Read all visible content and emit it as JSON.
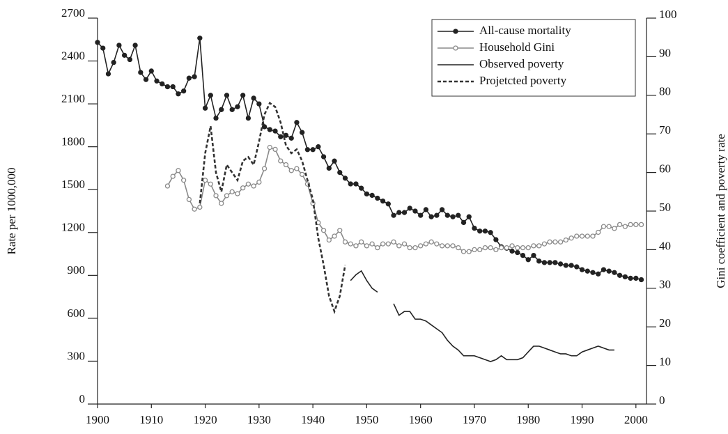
{
  "chart_data": {
    "type": "line",
    "ylabel": "Rate per 1000,000",
    "y2label": "Gini coefficient and poverty rate",
    "xlim": [
      1900,
      2003
    ],
    "xticks": [
      1900,
      1910,
      1920,
      1930,
      1940,
      1950,
      1960,
      1970,
      1980,
      1990,
      2000
    ],
    "ylim": [
      0,
      2700
    ],
    "yticks": [
      0,
      300,
      600,
      900,
      1200,
      1500,
      1800,
      2100,
      2400,
      2700
    ],
    "y2lim": [
      0,
      100
    ],
    "y2ticks": [
      0,
      10,
      20,
      30,
      40,
      50,
      60,
      70,
      80,
      90,
      100
    ],
    "legend": "upper right",
    "series": [
      {
        "name": "All-cause mortality",
        "color": "#222222",
        "marker": "filled",
        "dash": false,
        "x": [
          1900,
          1901,
          1902,
          1903,
          1904,
          1905,
          1906,
          1907,
          1908,
          1909,
          1910,
          1911,
          1912,
          1913,
          1914,
          1915,
          1916,
          1917,
          1918,
          1919,
          1920,
          1921,
          1922,
          1923,
          1924,
          1925,
          1926,
          1927,
          1928,
          1929,
          1930,
          1931,
          1932,
          1933,
          1934,
          1935,
          1936,
          1937,
          1938,
          1939,
          1940,
          1941,
          1942,
          1943,
          1944,
          1945,
          1946,
          1947,
          1948,
          1949,
          1950,
          1951,
          1952,
          1953,
          1954,
          1955,
          1956,
          1957,
          1958,
          1959,
          1960,
          1961,
          1962,
          1963,
          1964,
          1965,
          1966,
          1967,
          1968,
          1969,
          1970,
          1971,
          1972,
          1973,
          1974,
          1975,
          1976,
          1977,
          1978,
          1979,
          1980,
          1981,
          1982,
          1983,
          1984,
          1985,
          1986,
          1987,
          1988,
          1989,
          1990,
          1991,
          1992,
          1993,
          1994,
          1995,
          1996,
          1997,
          1998,
          1999,
          2000,
          2001
        ],
        "values": [
          2530,
          2490,
          2310,
          2390,
          2510,
          2440,
          2410,
          2510,
          2320,
          2270,
          2330,
          2260,
          2240,
          2220,
          2220,
          2170,
          2190,
          2280,
          2290,
          2560,
          2070,
          2160,
          2000,
          2060,
          2160,
          2060,
          2080,
          2160,
          2000,
          2140,
          2100,
          1940,
          1920,
          1910,
          1870,
          1880,
          1860,
          1970,
          1900,
          1780,
          1780,
          1800,
          1730,
          1650,
          1700,
          1620,
          1580,
          1540,
          1540,
          1510,
          1470,
          1460,
          1440,
          1420,
          1400,
          1320,
          1340,
          1340,
          1370,
          1350,
          1320,
          1360,
          1310,
          1320,
          1360,
          1320,
          1310,
          1320,
          1270,
          1310,
          1230,
          1210,
          1210,
          1200,
          1150,
          1100,
          1090,
          1070,
          1060,
          1040,
          1010,
          1040,
          1000,
          990,
          990,
          990,
          980,
          970,
          970,
          960,
          940,
          930,
          920,
          910,
          940,
          930,
          920,
          900,
          890,
          880,
          880,
          870
        ]
      },
      {
        "name": "Household Gini",
        "color": "#8a8a8a",
        "marker": "open",
        "dash": false,
        "axis": "y2",
        "x": [
          1913,
          1914,
          1915,
          1916,
          1917,
          1918,
          1919,
          1920,
          1921,
          1922,
          1923,
          1924,
          1925,
          1926,
          1927,
          1928,
          1929,
          1930,
          1931,
          1932,
          1933,
          1934,
          1935,
          1936,
          1937,
          1938,
          1939,
          1940,
          1941,
          1942,
          1943,
          1944,
          1945,
          1946,
          1947,
          1948,
          1949,
          1950,
          1951,
          1952,
          1953,
          1954,
          1955,
          1956,
          1957,
          1958,
          1959,
          1960,
          1961,
          1962,
          1963,
          1964,
          1965,
          1966,
          1967,
          1968,
          1969,
          1970,
          1971,
          1972,
          1973,
          1974,
          1975,
          1976,
          1977,
          1978,
          1979,
          1980,
          1981,
          1982,
          1983,
          1984,
          1985,
          1986,
          1987,
          1988,
          1989,
          1990,
          1991,
          1992,
          1993,
          1994,
          1995,
          1996,
          1997,
          1998,
          1999,
          2000,
          2001
        ],
        "values": [
          56.5,
          59,
          60.5,
          58,
          53,
          50.5,
          51,
          58,
          57,
          54,
          52,
          54,
          55,
          54.5,
          56,
          57,
          56.5,
          57.5,
          61,
          66.5,
          66,
          63,
          62,
          60.5,
          61,
          59.5,
          57,
          52,
          47,
          45,
          42.5,
          43.5,
          45,
          42,
          41.5,
          41,
          42,
          41,
          41.5,
          40.5,
          41.5,
          41.5,
          42,
          41,
          41.5,
          40.5,
          40.5,
          41,
          41.5,
          42,
          41.5,
          41,
          41,
          41,
          40.5,
          39.5,
          39.5,
          40,
          40,
          40.5,
          40.5,
          40,
          40.5,
          40.5,
          41,
          40.5,
          40.5,
          40.5,
          41,
          41,
          41.5,
          42,
          42,
          42,
          42.5,
          43,
          43.5,
          43.5,
          43.5,
          43.5,
          44.5,
          46,
          46,
          45.5,
          46.5,
          46,
          46.5,
          46.5,
          46.5
        ]
      },
      {
        "name": "Observed poverty",
        "color": "#222222",
        "marker": "none",
        "dash": false,
        "axis": "y2",
        "x": [
          1947,
          1948,
          1949,
          1950,
          1951,
          1952,
          1953,
          1954,
          1955,
          1956,
          1957,
          1958,
          1959,
          1960,
          1961,
          1962,
          1963,
          1964,
          1965,
          1966,
          1967,
          1968,
          1969,
          1970,
          1971,
          1972,
          1973,
          1974,
          1975,
          1976,
          1977,
          1978,
          1979,
          1980,
          1981,
          1982,
          1983,
          1984,
          1985,
          1986,
          1987,
          1988,
          1989,
          1990,
          1991,
          1992,
          1993,
          1994,
          1995,
          1996
        ],
        "values": [
          32,
          33.5,
          34.5,
          32,
          30,
          29,
          null,
          null,
          26,
          23,
          24,
          24,
          22,
          22,
          21.5,
          20.5,
          19.5,
          18.5,
          16.5,
          15,
          14,
          12.5,
          12.5,
          12.5,
          12,
          11.5,
          11,
          11.5,
          12.5,
          11.5,
          11.5,
          11.5,
          12,
          13.5,
          15,
          15,
          14.5,
          14,
          13.5,
          13,
          13,
          12.5,
          12.5,
          13.5,
          14,
          14.5,
          15,
          14.5,
          14,
          14
        ]
      },
      {
        "name": "Projetcted poverty",
        "color": "#333333",
        "marker": "none",
        "dash": true,
        "axis": "y2",
        "x": [
          1919,
          1920,
          1921,
          1922,
          1923,
          1924,
          1925,
          1926,
          1927,
          1928,
          1929,
          1930,
          1931,
          1932,
          1933,
          1934,
          1935,
          1936,
          1937,
          1938,
          1939,
          1940,
          1941,
          1942,
          1943,
          1944,
          1945,
          1946
        ],
        "values": [
          52,
          65,
          72,
          60,
          55,
          62,
          60,
          58,
          63,
          64,
          62,
          68,
          75,
          78,
          77,
          73,
          67,
          65,
          66,
          63,
          58,
          53,
          43,
          36,
          28,
          24,
          28,
          36
        ]
      }
    ]
  }
}
